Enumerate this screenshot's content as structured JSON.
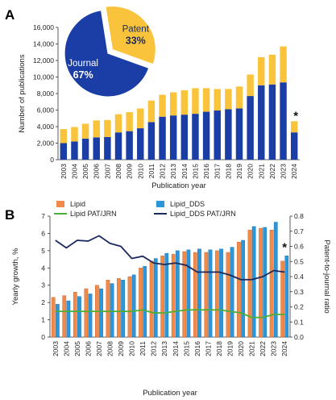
{
  "panels": {
    "a_label": "A",
    "b_label": "B",
    "a_note": "*",
    "b_note": "*"
  },
  "chart_data": [
    {
      "type": "bar",
      "stacked": true,
      "xlabel": "Publication year",
      "ylabel": "Number of publications",
      "ylim": [
        0,
        16000
      ],
      "yticks": [
        "0",
        "2,000",
        "4,000",
        "6,000",
        "8,000",
        "10,000",
        "12,000",
        "14,000",
        "16,000"
      ],
      "categories": [
        "2003",
        "2004",
        "2005",
        "2006",
        "2007",
        "2008",
        "2009",
        "2010",
        "2011",
        "2012",
        "2013",
        "2014",
        "2015",
        "2016",
        "2017",
        "2018",
        "2019",
        "2020",
        "2021",
        "2022",
        "2023",
        "2024"
      ],
      "series": [
        {
          "name": "Journal",
          "color": "#1b3ea6",
          "values": [
            2000,
            2200,
            2550,
            2700,
            2750,
            3300,
            3450,
            3800,
            4550,
            5200,
            5350,
            5450,
            5550,
            5800,
            5950,
            6100,
            6200,
            7700,
            9000,
            9100,
            9350,
            3300
          ]
        },
        {
          "name": "Patent",
          "color": "#f9c43c",
          "values": [
            1700,
            1750,
            1800,
            2050,
            2050,
            2200,
            2300,
            2400,
            2600,
            2650,
            2800,
            2950,
            3100,
            2850,
            2600,
            2450,
            2650,
            2600,
            3400,
            3600,
            4350,
            1350
          ]
        }
      ],
      "grid": false,
      "pie": {
        "type": "pie",
        "slices": [
          {
            "label": "Journal",
            "value": 67,
            "text": "67%",
            "color": "#1b3ea6"
          },
          {
            "label": "Patent",
            "value": 33,
            "text": "33%",
            "color": "#f9c43c"
          }
        ]
      }
    },
    {
      "type": "bar+line",
      "xlabel": "Publication year",
      "ylabel_left": "Yearly growth, %",
      "ylabel_right": "Patent-to-journal ratio",
      "ylim_left": [
        0,
        7
      ],
      "ylim_right": [
        0,
        0.8
      ],
      "yticks_left": [
        "0",
        "1",
        "2",
        "3",
        "4",
        "5",
        "6",
        "7"
      ],
      "yticks_right": [
        "0.0",
        "0.1",
        "0.2",
        "0.3",
        "0.4",
        "0.5",
        "0.6",
        "0.7",
        "0.8"
      ],
      "categories": [
        "2003",
        "2004",
        "2005",
        "2006",
        "2007",
        "2008",
        "2009",
        "2010",
        "2011",
        "2012",
        "2013",
        "2014",
        "2015",
        "2016",
        "2017",
        "2018",
        "2019",
        "2020",
        "2021",
        "2022",
        "2023",
        "2024"
      ],
      "bar_series": [
        {
          "name": "Lipid",
          "color": "#f0894a",
          "values": [
            2.3,
            2.4,
            2.6,
            2.8,
            3.0,
            3.3,
            3.4,
            3.5,
            4.0,
            4.4,
            4.7,
            4.8,
            4.95,
            4.9,
            4.9,
            5.0,
            4.9,
            5.5,
            6.2,
            6.3,
            6.2,
            4.4
          ]
        },
        {
          "name": "Lipid_DDS",
          "color": "#2c96d8",
          "values": [
            1.9,
            2.1,
            2.35,
            2.5,
            2.8,
            3.1,
            3.3,
            3.6,
            4.1,
            4.55,
            4.85,
            5.0,
            5.05,
            5.1,
            5.05,
            5.1,
            5.2,
            5.6,
            6.4,
            6.35,
            6.65,
            4.7
          ]
        }
      ],
      "line_series": [
        {
          "name": "Lipid PAT/JRN",
          "color": "#4caf35",
          "axis": "right",
          "values": [
            0.17,
            0.17,
            0.17,
            0.17,
            0.17,
            0.17,
            0.17,
            0.17,
            0.18,
            0.16,
            0.16,
            0.17,
            0.18,
            0.18,
            0.18,
            0.18,
            0.17,
            0.16,
            0.13,
            0.13,
            0.15,
            0.15
          ]
        },
        {
          "name": "Lipid_DDS PAT/JRN",
          "color": "#1c2a5e",
          "axis": "right",
          "values": [
            0.64,
            0.59,
            0.64,
            0.635,
            0.67,
            0.62,
            0.6,
            0.52,
            0.535,
            0.49,
            0.48,
            0.49,
            0.475,
            0.43,
            0.43,
            0.43,
            0.41,
            0.38,
            0.38,
            0.4,
            0.44,
            0.43
          ]
        }
      ],
      "legend_position": "top",
      "grid": false
    }
  ]
}
